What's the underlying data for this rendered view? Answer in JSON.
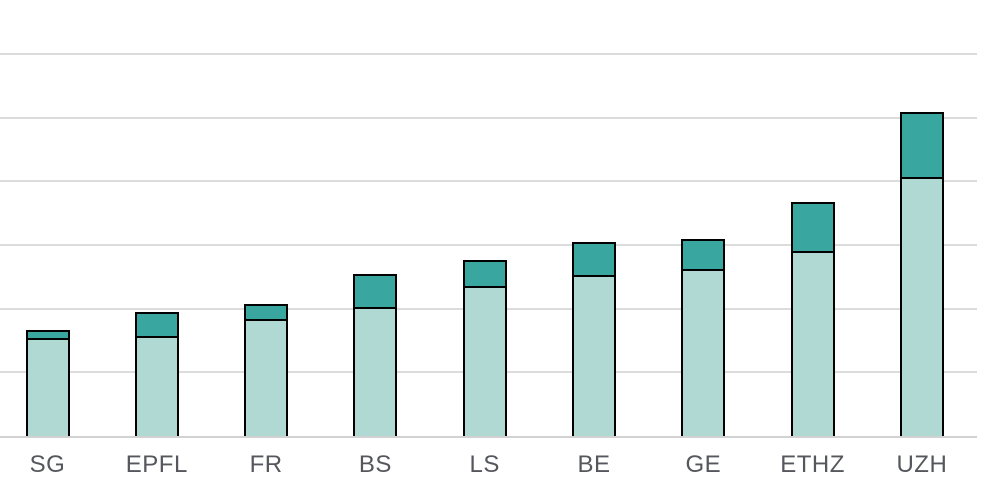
{
  "chart_data": {
    "type": "bar",
    "stacked": true,
    "title": "",
    "xlabel": "",
    "ylabel": "",
    "categories": [
      "SG",
      "EPFL",
      "FR",
      "BS",
      "LS",
      "BE",
      "GE",
      "ETHZ",
      "UZH"
    ],
    "series": [
      {
        "name": "light-teal-lower-segment",
        "color": "#b0d9d3",
        "values": [
          1.5,
          1.54,
          1.8,
          1.99,
          2.32,
          2.5,
          2.59,
          2.88,
          4.03
        ]
      },
      {
        "name": "dark-teal-upper-segment",
        "color": "#3aa6a0",
        "values": [
          0.16,
          0.41,
          0.28,
          0.55,
          0.45,
          0.54,
          0.51,
          0.79,
          1.06
        ]
      }
    ],
    "totals": [
      1.66,
      1.95,
      2.08,
      2.54,
      2.77,
      3.04,
      3.1,
      3.67,
      5.09
    ],
    "ylim": [
      0,
      6
    ],
    "y_axis_tick_labels": "none",
    "gridlines": {
      "visible": true,
      "interval": 1,
      "count_above_baseline": 6,
      "color": "#dcdcdc"
    },
    "legend": "none",
    "bar_outline_color": "#000000",
    "baseline_color": "#d2d2d2",
    "x_label_color": "#55575c"
  }
}
